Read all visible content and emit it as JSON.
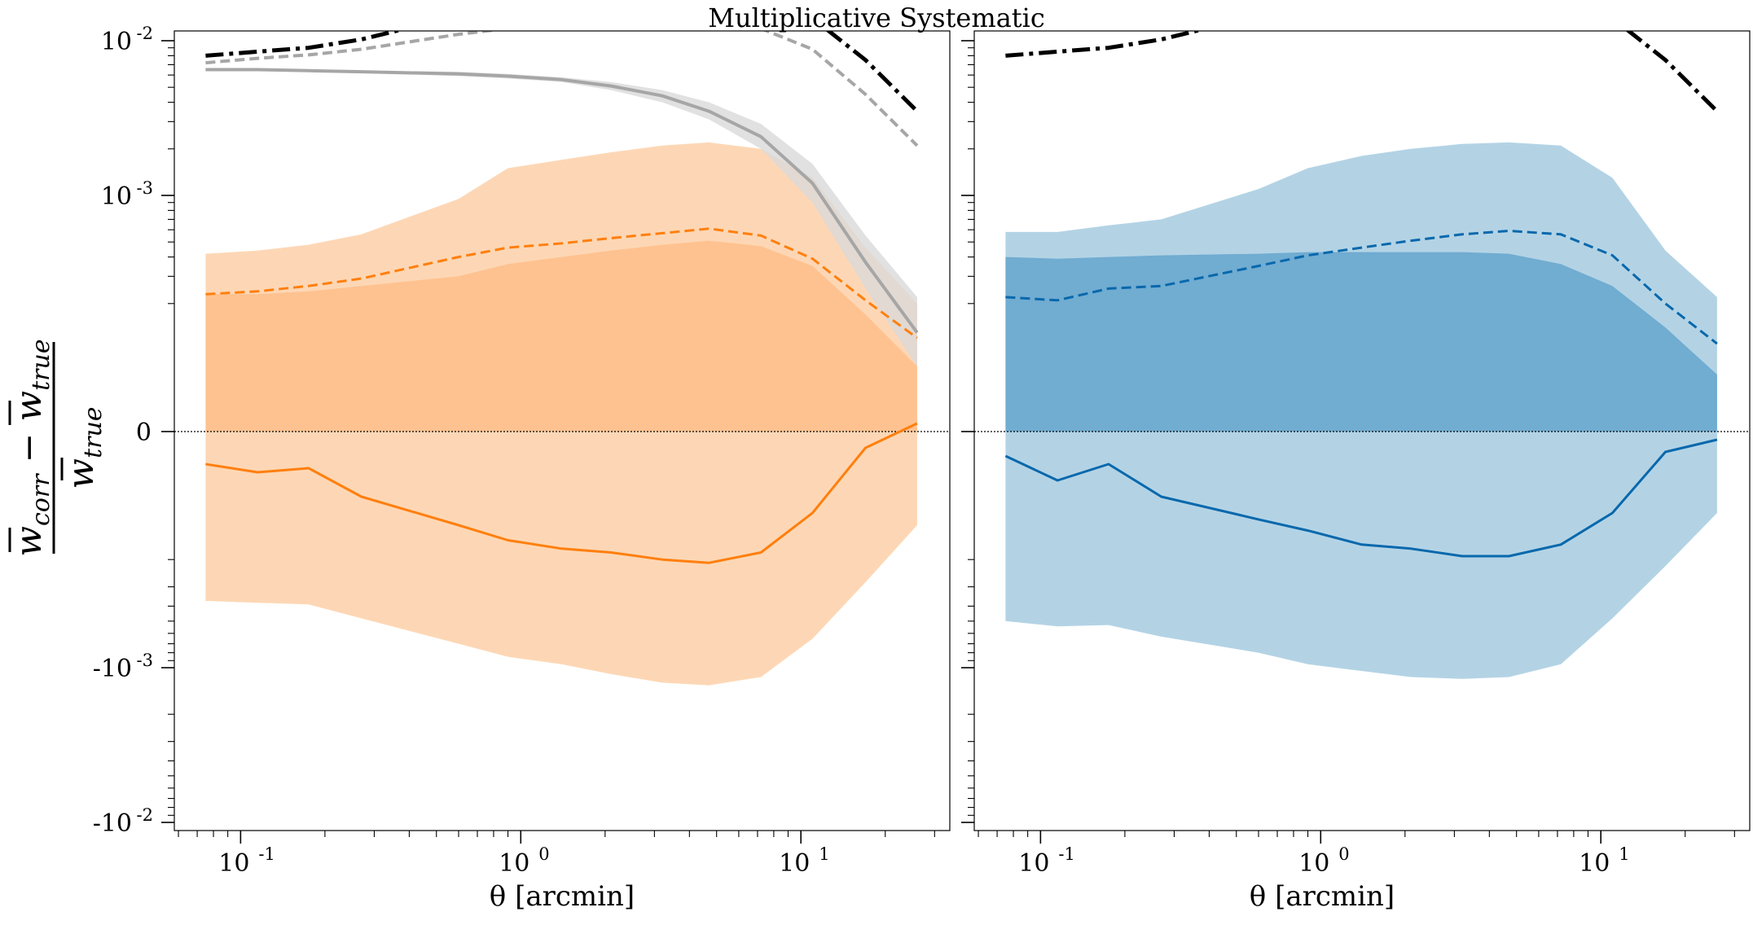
{
  "title": "Multiplicative Systematic",
  "colors": {
    "orange": "#ff7f0e",
    "orange_dark_band": "#fdbb84",
    "orange_light_band": "#fdd0a8",
    "blue": "#0868ac",
    "blue_dark_band": "#5b9fc9",
    "blue_light_band": "#a6cbe1",
    "gray": "#a6a6a6",
    "black": "#000000"
  },
  "chart_data": [
    {
      "type": "line",
      "panel": "left",
      "title": "Multiplicative Systematic",
      "xlabel": "θ [arcmin]",
      "ylabel": "(w̄corr − w̄true) / w̄true",
      "xscale": "log",
      "yscale": "symlog",
      "xlim": [
        0.058,
        34
      ],
      "ylim": [
        -0.035,
        0.035
      ],
      "x_ticks": [
        {
          "base": "10",
          "exp": "-1"
        },
        {
          "base": "10",
          "exp": "0"
        },
        {
          "base": "10",
          "exp": "1"
        }
      ],
      "y_ticks": [
        {
          "base": "10",
          "exp": "-2"
        },
        {
          "base": "10",
          "exp": "-3"
        },
        {
          "base": "0",
          "exp": ""
        },
        {
          "base": "-10",
          "exp": "-3"
        },
        {
          "base": "-10",
          "exp": "-2"
        }
      ],
      "grid": false,
      "x": [
        0.075,
        0.115,
        0.175,
        0.27,
        0.6,
        0.9,
        1.4,
        2.1,
        3.2,
        4.7,
        7.2,
        11,
        17,
        26
      ],
      "series": [
        {
          "style": "dashdot",
          "color": "black",
          "values": [
            0.008,
            0.0085,
            0.009,
            0.0102,
            0.0145,
            0.0165,
            0.0175,
            0.0185,
            0.0195,
            0.02,
            0.0185,
            0.014,
            0.0075,
            0.0035
          ]
        },
        {
          "style": "dashed",
          "color": "gray",
          "values": [
            0.0072,
            0.0077,
            0.0081,
            0.0088,
            0.011,
            0.012,
            0.0125,
            0.013,
            0.0133,
            0.0133,
            0.012,
            0.0088,
            0.0045,
            0.0021
          ]
        },
        {
          "style": "solid",
          "color": "gray",
          "values": [
            0.0065,
            0.0065,
            0.0064,
            0.0063,
            0.0061,
            0.0059,
            0.0056,
            0.0051,
            0.0044,
            0.0035,
            0.0024,
            0.0012,
            0.00037,
            0.00013
          ],
          "band_upper": [
            0.0066,
            0.0066,
            0.0065,
            0.0064,
            0.0063,
            0.0061,
            0.0058,
            0.0054,
            0.0048,
            0.004,
            0.0029,
            0.0016,
            0.00055,
            0.00022
          ],
          "band_lower": [
            0.0064,
            0.0064,
            0.0063,
            0.0062,
            0.0059,
            0.0057,
            0.0054,
            0.0048,
            0.004,
            0.0031,
            0.002,
            0.0009,
            0.00025,
            8e-05
          ]
        },
        {
          "style": "dashed",
          "color": "orange",
          "values": [
            0.00023,
            0.00024,
            0.00026,
            0.00029,
            0.0004,
            0.00046,
            0.00049,
            0.00053,
            0.00057,
            0.00061,
            0.00055,
            0.00039,
            0.00021,
            0.00012
          ]
        },
        {
          "style": "solid",
          "color": "orange",
          "values": [
            -4e-05,
            -5e-05,
            -4.5e-05,
            -8e-05,
            -0.00012,
            -0.00015,
            -0.00017,
            -0.00018,
            -0.0002,
            -0.00021,
            -0.00018,
            -0.0001,
            -2e-05,
            1e-05
          ]
        },
        {
          "style": "band",
          "color": "orange_light_band",
          "upper": [
            0.00042,
            0.00044,
            0.00048,
            0.00056,
            0.00095,
            0.0015,
            0.0017,
            0.0019,
            0.0021,
            0.0022,
            0.002,
            0.0013,
            0.00046,
            0.0002
          ],
          "lower": [
            -0.00037,
            -0.00038,
            -0.00039,
            -0.00048,
            -0.0007,
            -0.00085,
            -0.00095,
            -0.0011,
            -0.00125,
            -0.0013,
            -0.00115,
            -0.00065,
            -0.00028,
            -0.00012
          ]
        },
        {
          "style": "band",
          "color": "orange_dark_band",
          "upper": [
            0.00023,
            0.00023,
            0.00024,
            0.00026,
            0.0003,
            0.00036,
            0.0004,
            0.00044,
            0.00048,
            0.00051,
            0.00047,
            0.00035,
            0.00017,
            8e-05
          ],
          "lower": [
            0.0,
            0.0,
            0.0,
            0.0,
            0.0,
            0.0,
            0.0,
            0.0,
            0.0,
            0.0,
            0.0,
            0.0,
            0.0,
            0.0
          ]
        }
      ]
    },
    {
      "type": "line",
      "panel": "right",
      "xlabel": "θ [arcmin]",
      "xscale": "log",
      "yscale": "symlog",
      "xlim": [
        0.058,
        34
      ],
      "ylim": [
        -0.035,
        0.035
      ],
      "x_ticks": [
        {
          "base": "10",
          "exp": "-1"
        },
        {
          "base": "10",
          "exp": "0"
        },
        {
          "base": "10",
          "exp": "1"
        }
      ],
      "grid": false,
      "x": [
        0.075,
        0.115,
        0.175,
        0.27,
        0.6,
        0.9,
        1.4,
        2.1,
        3.2,
        4.7,
        7.2,
        11,
        17,
        26
      ],
      "series": [
        {
          "style": "dashdot",
          "color": "black",
          "values": [
            0.008,
            0.0085,
            0.009,
            0.0102,
            0.0145,
            0.0165,
            0.0175,
            0.0185,
            0.0195,
            0.02,
            0.0185,
            0.014,
            0.0075,
            0.0035
          ]
        },
        {
          "style": "dashed",
          "color": "blue",
          "values": [
            0.00022,
            0.00021,
            0.00025,
            0.00026,
            0.00035,
            0.00041,
            0.00046,
            0.00051,
            0.00056,
            0.00059,
            0.00056,
            0.00041,
            0.0002,
            0.00011
          ]
        },
        {
          "style": "solid",
          "color": "blue",
          "values": [
            -3e-05,
            -6e-05,
            -4e-05,
            -8e-05,
            -0.00011,
            -0.00013,
            -0.00016,
            -0.00017,
            -0.00019,
            -0.00019,
            -0.00016,
            -0.0001,
            -2.5e-05,
            -1e-05
          ]
        },
        {
          "style": "band",
          "color": "blue_light_band",
          "upper": [
            0.00058,
            0.00058,
            0.00064,
            0.0007,
            0.0011,
            0.0015,
            0.0018,
            0.002,
            0.00215,
            0.0022,
            0.0021,
            0.0013,
            0.00044,
            0.00022
          ],
          "lower": [
            -0.0005,
            -0.00054,
            -0.00053,
            -0.00063,
            -0.0008,
            -0.00095,
            -0.00105,
            -0.00115,
            -0.00118,
            -0.00115,
            -0.00095,
            -0.00048,
            -0.00022,
            -0.0001
          ]
        },
        {
          "style": "band",
          "color": "blue_dark_band",
          "upper": [
            0.0004,
            0.00039,
            0.0004,
            0.00041,
            0.00042,
            0.00043,
            0.00043,
            0.00043,
            0.00043,
            0.00042,
            0.00036,
            0.00026,
            0.00014,
            7e-05
          ],
          "lower": [
            0.0,
            0.0,
            0.0,
            0.0,
            0.0,
            0.0,
            0.0,
            0.0,
            0.0,
            0.0,
            0.0,
            0.0,
            0.0,
            0.0
          ]
        }
      ]
    }
  ]
}
